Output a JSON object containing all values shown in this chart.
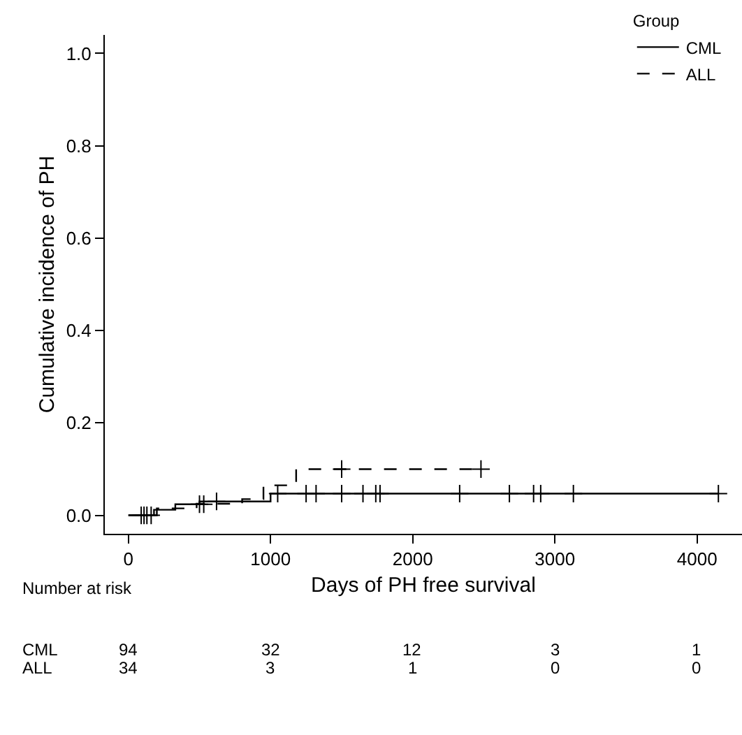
{
  "chart_data": {
    "type": "step",
    "xlabel": "Days of PH free survival",
    "ylabel": "Cumulative incidence of PH",
    "legend_title": "Group",
    "legend": "top right",
    "grid": false,
    "xlim": [
      -166,
      4316
    ],
    "ylim": [
      -0.04,
      1.04
    ],
    "xticks": [
      0,
      1000,
      2000,
      3000,
      4000
    ],
    "yticks": [
      {
        "value": 0,
        "label": "0.0"
      },
      {
        "value": 0.2,
        "label": "0.2"
      },
      {
        "value": 0.4,
        "label": "0.4"
      },
      {
        "value": 0.6,
        "label": "0.6"
      },
      {
        "value": 0.8,
        "label": "0.8"
      },
      {
        "value": 1,
        "label": "1.0"
      }
    ],
    "series": [
      {
        "name": "CML",
        "color": "#000000",
        "line_style": "solid",
        "x": [
          0,
          180,
          330,
          500,
          1000,
          4150
        ],
        "values": [
          0,
          0.012,
          0.024,
          0.03,
          0.047,
          0.047
        ]
      },
      {
        "name": "ALL",
        "color": "#000000",
        "line_style": "dashed",
        "x": [
          0,
          200,
          480,
          800,
          950,
          1180,
          2480
        ],
        "values": [
          0,
          0.015,
          0.025,
          0.035,
          0.065,
          0.1,
          0.1
        ]
      },
      {
        "type": "scatter",
        "marker": "cross",
        "color": "#000000",
        "x": [
          90,
          110,
          130,
          160,
          500,
          530,
          620,
          1050,
          1250,
          1320,
          1500,
          1650,
          1740,
          1770,
          2330,
          2680,
          2850,
          2900,
          3130,
          4150
        ],
        "values": [
          0,
          0,
          0,
          0,
          0.024,
          0.024,
          0.03,
          0.047,
          0.047,
          0.047,
          0.047,
          0.047,
          0.047,
          0.047,
          0.047,
          0.047,
          0.047,
          0.047,
          0.047,
          0.047
        ]
      },
      {
        "type": "scatter",
        "marker": "cross",
        "color": "#000000",
        "x": [
          1500,
          2480
        ],
        "values": [
          0.1,
          0.1
        ]
      }
    ],
    "annotations": [
      "Number at risk",
      "CML",
      "94",
      "32",
      "12",
      "3",
      "1",
      "ALL",
      "34",
      "3",
      "1",
      "0",
      "0"
    ]
  }
}
